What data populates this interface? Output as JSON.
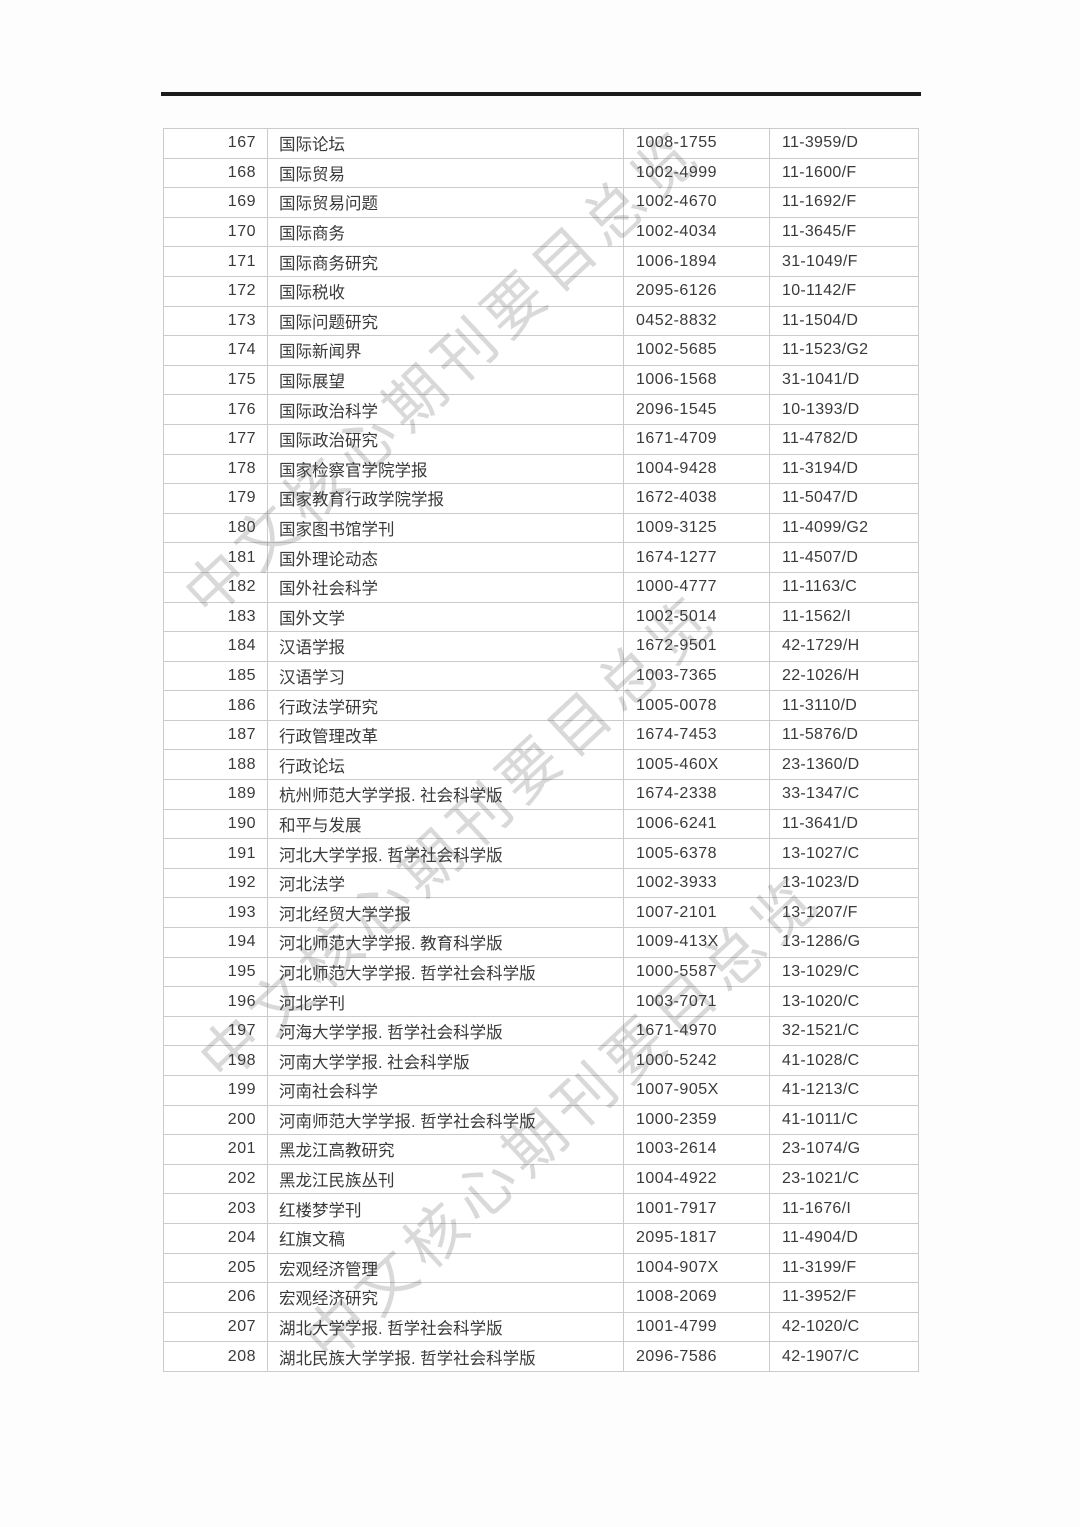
{
  "page": {
    "kind": "scanned catalog page",
    "colors": {
      "top_rule": "#1b1b1b",
      "table_border": "#cbcbcb",
      "text": "#3a3a3a",
      "watermark": "#c9c9c9",
      "background": "#fdfdfd"
    }
  },
  "watermark": {
    "text": "中文核心期刊要目总览"
  },
  "table": {
    "rows": [
      {
        "no": "167",
        "name": "国际论坛",
        "issn": "1008-1755",
        "cn": "11-3959/D"
      },
      {
        "no": "168",
        "name": "国际贸易",
        "issn": "1002-4999",
        "cn": "11-1600/F"
      },
      {
        "no": "169",
        "name": "国际贸易问题",
        "issn": "1002-4670",
        "cn": "11-1692/F"
      },
      {
        "no": "170",
        "name": "国际商务",
        "issn": "1002-4034",
        "cn": "11-3645/F"
      },
      {
        "no": "171",
        "name": "国际商务研究",
        "issn": "1006-1894",
        "cn": "31-1049/F"
      },
      {
        "no": "172",
        "name": "国际税收",
        "issn": "2095-6126",
        "cn": "10-1142/F"
      },
      {
        "no": "173",
        "name": "国际问题研究",
        "issn": "0452-8832",
        "cn": "11-1504/D"
      },
      {
        "no": "174",
        "name": "国际新闻界",
        "issn": "1002-5685",
        "cn": "11-1523/G2"
      },
      {
        "no": "175",
        "name": "国际展望",
        "issn": "1006-1568",
        "cn": "31-1041/D"
      },
      {
        "no": "176",
        "name": "国际政治科学",
        "issn": "2096-1545",
        "cn": "10-1393/D"
      },
      {
        "no": "177",
        "name": "国际政治研究",
        "issn": "1671-4709",
        "cn": "11-4782/D"
      },
      {
        "no": "178",
        "name": "国家检察官学院学报",
        "issn": "1004-9428",
        "cn": "11-3194/D"
      },
      {
        "no": "179",
        "name": "国家教育行政学院学报",
        "issn": "1672-4038",
        "cn": "11-5047/D"
      },
      {
        "no": "180",
        "name": "国家图书馆学刊",
        "issn": "1009-3125",
        "cn": "11-4099/G2"
      },
      {
        "no": "181",
        "name": "国外理论动态",
        "issn": "1674-1277",
        "cn": "11-4507/D"
      },
      {
        "no": "182",
        "name": "国外社会科学",
        "issn": "1000-4777",
        "cn": "11-1163/C"
      },
      {
        "no": "183",
        "name": "国外文学",
        "issn": "1002-5014",
        "cn": "11-1562/I"
      },
      {
        "no": "184",
        "name": "汉语学报",
        "issn": "1672-9501",
        "cn": "42-1729/H"
      },
      {
        "no": "185",
        "name": "汉语学习",
        "issn": "1003-7365",
        "cn": "22-1026/H"
      },
      {
        "no": "186",
        "name": "行政法学研究",
        "issn": "1005-0078",
        "cn": "11-3110/D"
      },
      {
        "no": "187",
        "name": "行政管理改革",
        "issn": "1674-7453",
        "cn": "11-5876/D"
      },
      {
        "no": "188",
        "name": "行政论坛",
        "issn": "1005-460X",
        "cn": "23-1360/D"
      },
      {
        "no": "189",
        "name": "杭州师范大学学报. 社会科学版",
        "issn": "1674-2338",
        "cn": "33-1347/C"
      },
      {
        "no": "190",
        "name": "和平与发展",
        "issn": "1006-6241",
        "cn": "11-3641/D"
      },
      {
        "no": "191",
        "name": "河北大学学报. 哲学社会科学版",
        "issn": "1005-6378",
        "cn": "13-1027/C"
      },
      {
        "no": "192",
        "name": "河北法学",
        "issn": "1002-3933",
        "cn": "13-1023/D"
      },
      {
        "no": "193",
        "name": "河北经贸大学学报",
        "issn": "1007-2101",
        "cn": "13-1207/F"
      },
      {
        "no": "194",
        "name": "河北师范大学学报. 教育科学版",
        "issn": "1009-413X",
        "cn": "13-1286/G"
      },
      {
        "no": "195",
        "name": "河北师范大学学报. 哲学社会科学版",
        "issn": "1000-5587",
        "cn": "13-1029/C"
      },
      {
        "no": "196",
        "name": "河北学刊",
        "issn": "1003-7071",
        "cn": "13-1020/C"
      },
      {
        "no": "197",
        "name": "河海大学学报. 哲学社会科学版",
        "issn": "1671-4970",
        "cn": "32-1521/C"
      },
      {
        "no": "198",
        "name": "河南大学学报. 社会科学版",
        "issn": "1000-5242",
        "cn": "41-1028/C"
      },
      {
        "no": "199",
        "name": "河南社会科学",
        "issn": "1007-905X",
        "cn": "41-1213/C"
      },
      {
        "no": "200",
        "name": "河南师范大学学报. 哲学社会科学版",
        "issn": "1000-2359",
        "cn": "41-1011/C"
      },
      {
        "no": "201",
        "name": "黑龙江高教研究",
        "issn": "1003-2614",
        "cn": "23-1074/G"
      },
      {
        "no": "202",
        "name": "黑龙江民族丛刊",
        "issn": "1004-4922",
        "cn": "23-1021/C"
      },
      {
        "no": "203",
        "name": "红楼梦学刊",
        "issn": "1001-7917",
        "cn": "11-1676/I"
      },
      {
        "no": "204",
        "name": "红旗文稿",
        "issn": "2095-1817",
        "cn": "11-4904/D"
      },
      {
        "no": "205",
        "name": "宏观经济管理",
        "issn": "1004-907X",
        "cn": "11-3199/F"
      },
      {
        "no": "206",
        "name": "宏观经济研究",
        "issn": "1008-2069",
        "cn": "11-3952/F"
      },
      {
        "no": "207",
        "name": "湖北大学学报. 哲学社会科学版",
        "issn": "1001-4799",
        "cn": "42-1020/C"
      },
      {
        "no": "208",
        "name": "湖北民族大学学报. 哲学社会科学版",
        "issn": "2096-7586",
        "cn": "42-1907/C"
      }
    ]
  }
}
